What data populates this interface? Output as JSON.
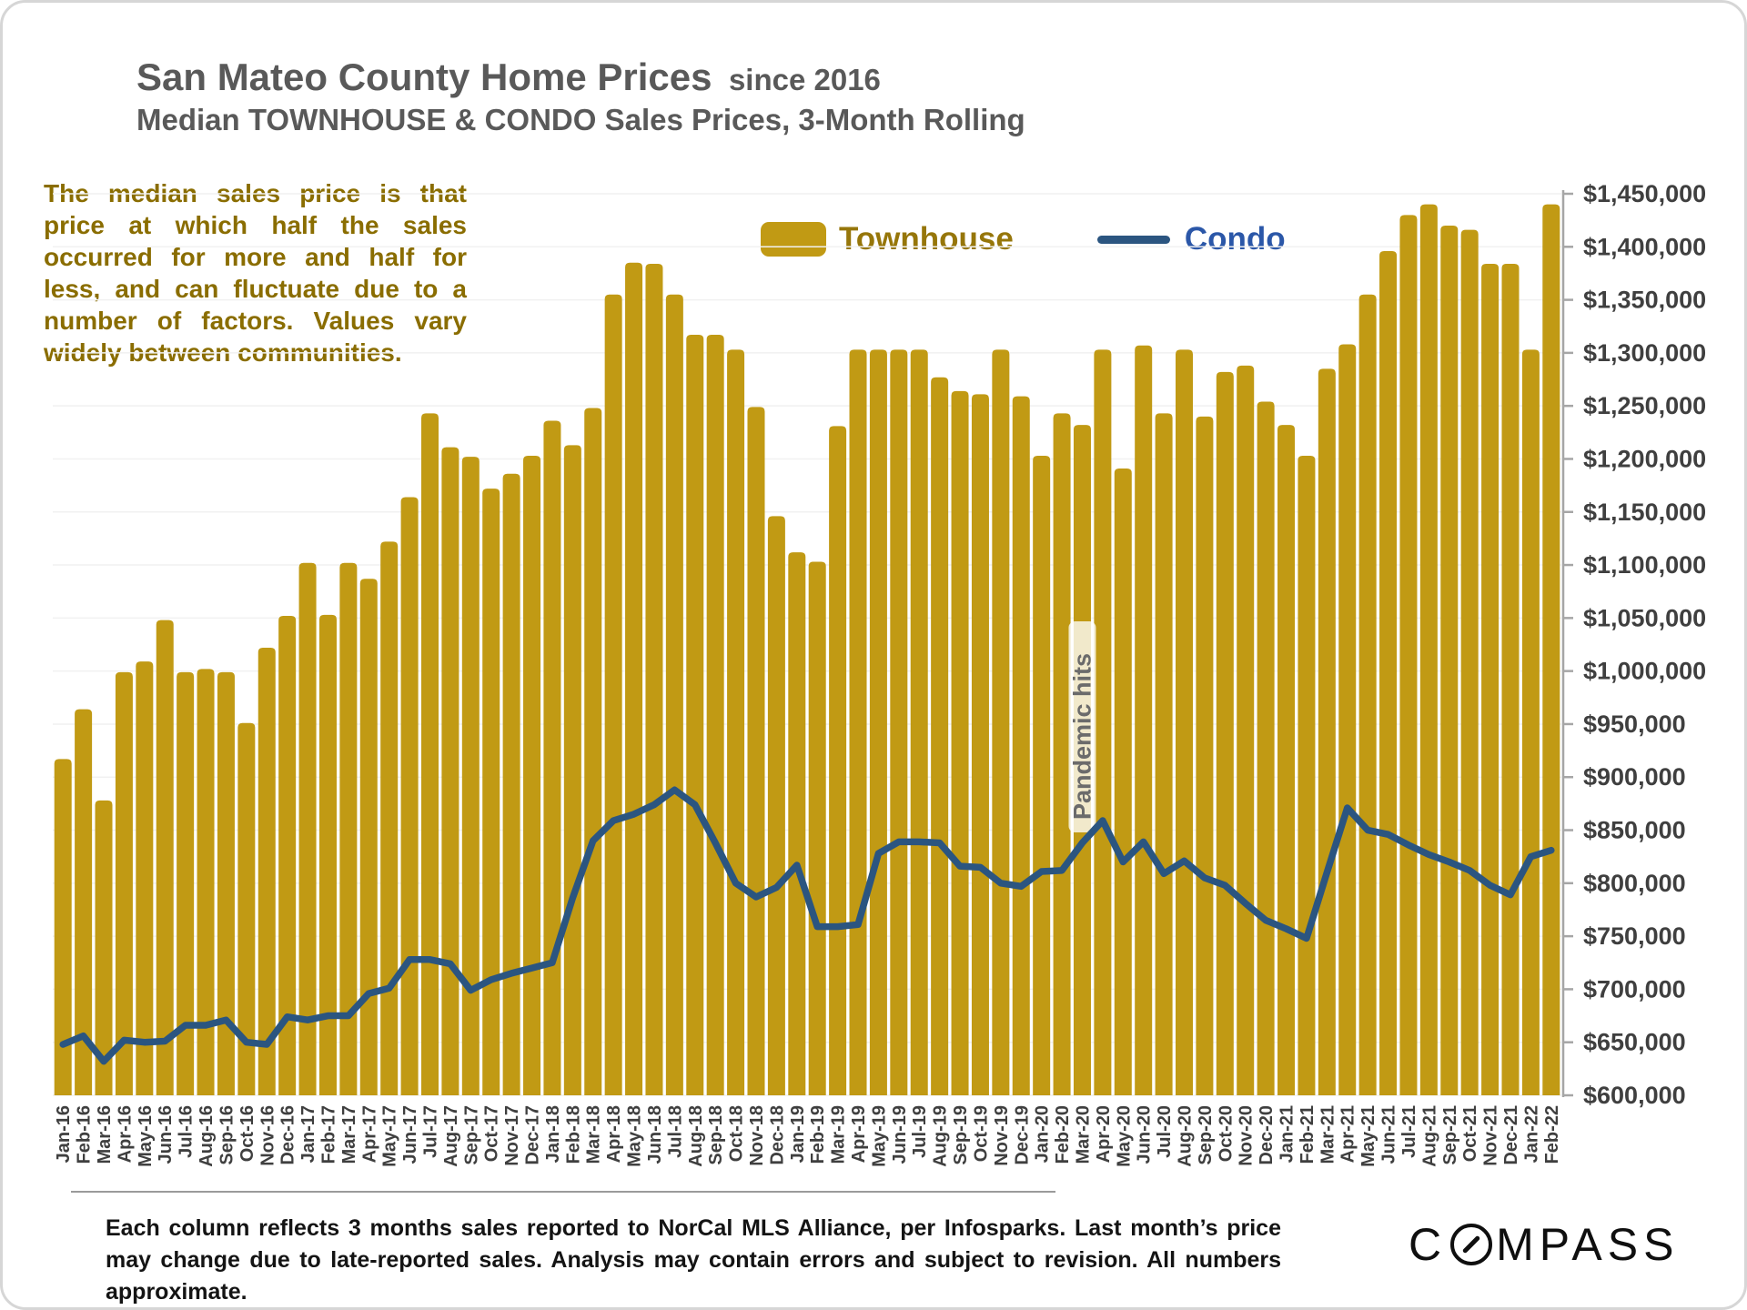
{
  "header": {
    "title": "San Mateo County Home Prices",
    "title_suffix": "since 2016",
    "subtitle": "Median TOWNHOUSE & CONDO Sales Prices, 3-Month Rolling"
  },
  "note": "The median sales price is that price at which half the sales occurred for more and half for less, and can fluctuate due to a number of factors. Values vary widely between communities.",
  "legend": {
    "townhouse": "Townhouse",
    "condo": "Condo"
  },
  "annotation": {
    "label": "Pandemic hits",
    "month": "Mar-20"
  },
  "footer": "Each column reflects 3 months sales reported to NorCal MLS Alliance, per Infosparks. Last month’s price may change due to late-reported sales. Analysis may contain errors and subject to revision. All numbers approximate.",
  "logo": {
    "full": "COMPASS",
    "prefix": "C",
    "suffix": "MPASS"
  },
  "colors": {
    "townhouse_bar": "#C19A14",
    "condo_line": "#2B5580",
    "townhouse_label": "#96760A",
    "condo_label": "#2B57A8",
    "title_gray": "#595959",
    "note_gold": "#8A6D00",
    "axis_text": "#3F3F3F",
    "annotation_text": "#6B6B6B",
    "gridline": "#F1F1F1",
    "axis_line": "#A6A6A6"
  },
  "chart_data": {
    "type": "combo",
    "title": "San Mateo County Home Prices since 2016 — Median TOWNHOUSE & CONDO Sales Prices, 3-Month Rolling",
    "xlabel": "",
    "ylabel": "",
    "ylim": [
      600000,
      1450000
    ],
    "tick_step": 50000,
    "axis_side": "right",
    "grid": "horizontal",
    "legend_position": "top",
    "categories": [
      "Jan-16",
      "Feb-16",
      "Mar-16",
      "Apr-16",
      "May-16",
      "Jun-16",
      "Jul-16",
      "Aug-16",
      "Sep-16",
      "Oct-16",
      "Nov-16",
      "Dec-16",
      "Jan-17",
      "Feb-17",
      "Mar-17",
      "Apr-17",
      "May-17",
      "Jun-17",
      "Jul-17",
      "Aug-17",
      "Sep-17",
      "Oct-17",
      "Nov-17",
      "Dec-17",
      "Jan-18",
      "Feb-18",
      "Mar-18",
      "Apr-18",
      "May-18",
      "Jun-18",
      "Jul-18",
      "Aug-18",
      "Sep-18",
      "Oct-18",
      "Nov-18",
      "Dec-18",
      "Jan-19",
      "Feb-19",
      "Mar-19",
      "Apr-19",
      "May-19",
      "Jun-19",
      "Jul-19",
      "Aug-19",
      "Sep-19",
      "Oct-19",
      "Nov-19",
      "Dec-19",
      "Jan-20",
      "Feb-20",
      "Mar-20",
      "Apr-20",
      "May-20",
      "Jun-20",
      "Jul-20",
      "Aug-20",
      "Sep-20",
      "Oct-20",
      "Nov-20",
      "Dec-20",
      "Jan-21",
      "Feb-21",
      "Mar-21",
      "Apr-21",
      "May-21",
      "Jun-21",
      "Jul-21",
      "Aug-21",
      "Sep-21",
      "Oct-21",
      "Nov-21",
      "Dec-21",
      "Jan-22",
      "Feb-22"
    ],
    "series": [
      {
        "name": "Townhouse",
        "type": "bar",
        "color": "#C19A14",
        "values": [
          917000,
          964000,
          878000,
          999000,
          1009000,
          1048000,
          999000,
          1002000,
          999000,
          951000,
          1022000,
          1052000,
          1102000,
          1053000,
          1102000,
          1087000,
          1122000,
          1164000,
          1243000,
          1211000,
          1202000,
          1172000,
          1186000,
          1203000,
          1236000,
          1213000,
          1248000,
          1355000,
          1385000,
          1384000,
          1355000,
          1317000,
          1317000,
          1303000,
          1249000,
          1146000,
          1112000,
          1103000,
          1231000,
          1303000,
          1303000,
          1303000,
          1303000,
          1277000,
          1264000,
          1261000,
          1303000,
          1259000,
          1203000,
          1243000,
          1232000,
          1303000,
          1191000,
          1307000,
          1243000,
          1303000,
          1240000,
          1282000,
          1288000,
          1254000,
          1232000,
          1203000,
          1285000,
          1308000,
          1355000,
          1396000,
          1430000,
          1440000,
          1420000,
          1416000,
          1384000,
          1384000,
          1303000,
          1440000
        ]
      },
      {
        "name": "Condo",
        "type": "line",
        "color": "#2B5580",
        "values": [
          648000,
          656000,
          632000,
          652000,
          650000,
          651000,
          666000,
          666000,
          671000,
          650000,
          648000,
          674000,
          671000,
          675000,
          675000,
          696000,
          701000,
          728000,
          728000,
          724000,
          699000,
          709000,
          715000,
          720000,
          725000,
          786000,
          840000,
          859000,
          865000,
          874000,
          888000,
          874000,
          838000,
          800000,
          787000,
          796000,
          817000,
          759000,
          759000,
          761000,
          828000,
          839000,
          839000,
          838000,
          816000,
          815000,
          800000,
          797000,
          811000,
          812000,
          838000,
          859000,
          820000,
          839000,
          809000,
          821000,
          805000,
          798000,
          781000,
          765000,
          757000,
          748000,
          810000,
          871000,
          850000,
          846000,
          836000,
          827000,
          820000,
          812000,
          798000,
          789000,
          825000,
          831000
        ]
      }
    ]
  }
}
